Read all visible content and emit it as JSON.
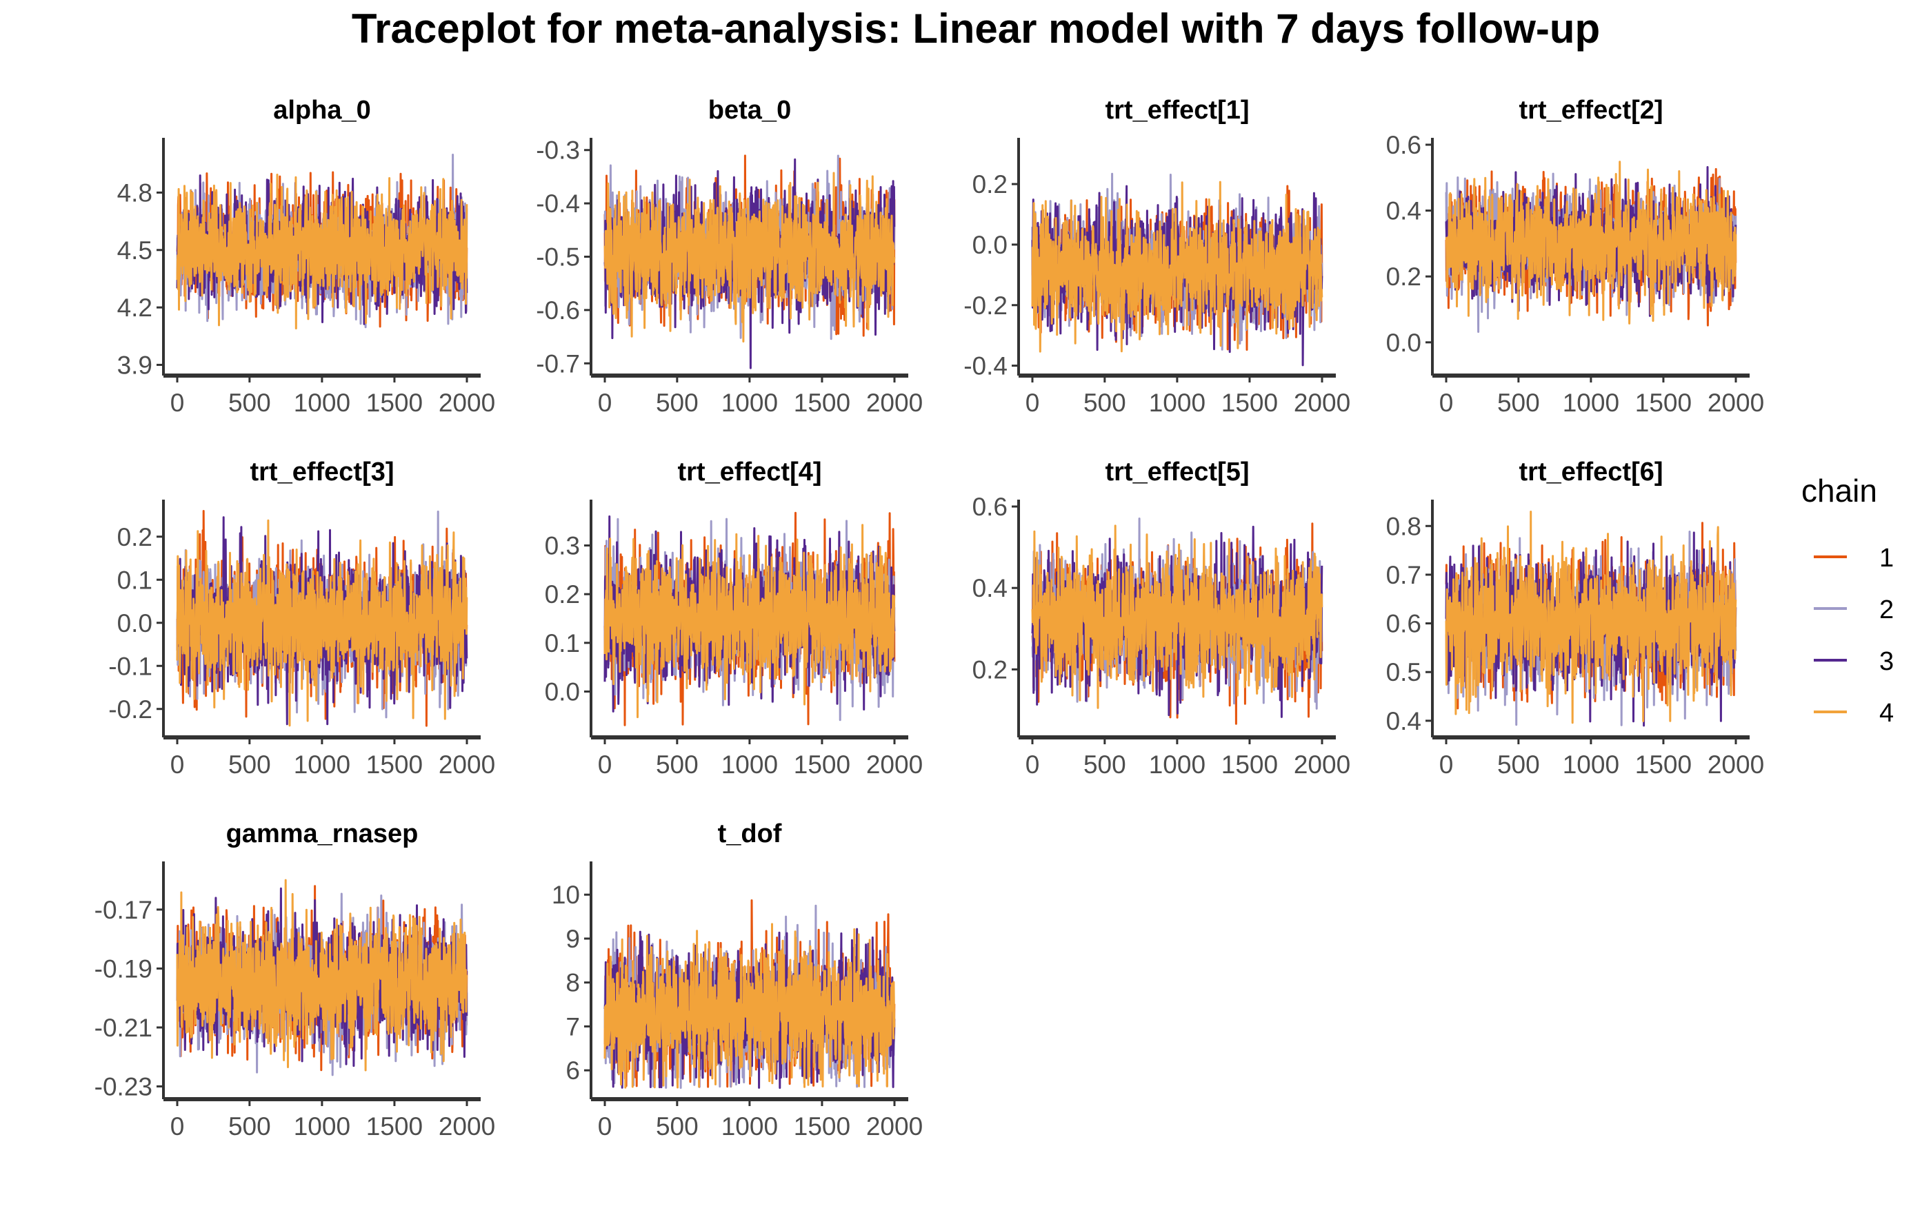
{
  "title": "Traceplot for meta-analysis: Linear model with 7 days follow-up",
  "colors": {
    "1": "#E6550D",
    "2": "#9E9AC8",
    "3": "#54278F",
    "4": "#F2A33A",
    "axis": "#333333",
    "tick_text": "#4d4d4d"
  },
  "legend": {
    "title": "chain",
    "entries": [
      "1",
      "2",
      "3",
      "4"
    ],
    "placement": "right"
  },
  "chart_data": {
    "type": "line",
    "x_range": [
      1,
      2000
    ],
    "x_ticks": [
      0,
      500,
      1000,
      1500,
      2000
    ],
    "x_tick_labels": [
      "0",
      "500",
      "1000",
      "1500",
      "2000"
    ],
    "series_names": [
      "1",
      "2",
      "3",
      "4"
    ],
    "panels": [
      {
        "name": "alpha_0",
        "ylim": [
          3.88,
          5.05
        ],
        "y_ticks": [
          3.9,
          4.2,
          4.5,
          4.8
        ],
        "y_tick_labels": [
          "3.9",
          "4.2",
          "4.5",
          "4.8"
        ],
        "center": 4.5,
        "sd": 0.14,
        "min": 3.92,
        "max": 5.0
      },
      {
        "name": "beta_0",
        "ylim": [
          -0.71,
          -0.29
        ],
        "y_ticks": [
          -0.7,
          -0.6,
          -0.5,
          -0.4,
          -0.3
        ],
        "y_tick_labels": [
          "-0.7",
          "-0.6",
          "-0.5",
          "-0.4",
          "-0.3"
        ],
        "center": -0.49,
        "sd": 0.055,
        "min": -0.71,
        "max": -0.31
      },
      {
        "name": "trt_effect[1]",
        "ylim": [
          -0.41,
          0.33
        ],
        "y_ticks": [
          -0.4,
          -0.2,
          0.0,
          0.2
        ],
        "y_tick_labels": [
          "-0.4",
          "-0.2",
          "0.0",
          "0.2"
        ],
        "center": -0.08,
        "sd": 0.09,
        "min": -0.4,
        "max": 0.28
      },
      {
        "name": "trt_effect[2]",
        "ylim": [
          -0.08,
          0.6
        ],
        "y_ticks": [
          0.0,
          0.2,
          0.4,
          0.6
        ],
        "y_tick_labels": [
          "0.0",
          "0.2",
          "0.4",
          "0.6"
        ],
        "center": 0.3,
        "sd": 0.08,
        "min": -0.07,
        "max": 0.58
      },
      {
        "name": "trt_effect[3]",
        "ylim": [
          -0.25,
          0.27
        ],
        "y_ticks": [
          -0.2,
          -0.1,
          0.0,
          0.1,
          0.2
        ],
        "y_tick_labels": [
          "-0.2",
          "-0.1",
          "0.0",
          "0.1",
          "0.2"
        ],
        "center": 0.0,
        "sd": 0.07,
        "min": -0.24,
        "max": 0.26
      },
      {
        "name": "trt_effect[4]",
        "ylim": [
          -0.08,
          0.38
        ],
        "y_ticks": [
          0.0,
          0.1,
          0.2,
          0.3
        ],
        "y_tick_labels": [
          "0.0",
          "0.1",
          "0.2",
          "0.3"
        ],
        "center": 0.15,
        "sd": 0.065,
        "min": -0.07,
        "max": 0.37
      },
      {
        "name": "trt_effect[5]",
        "ylim": [
          0.05,
          0.6
        ],
        "y_ticks": [
          0.2,
          0.4,
          0.6
        ],
        "y_tick_labels": [
          "0.2",
          "0.4",
          "0.6"
        ],
        "center": 0.32,
        "sd": 0.075,
        "min": 0.06,
        "max": 0.58
      },
      {
        "name": "trt_effect[6]",
        "ylim": [
          0.38,
          0.84
        ],
        "y_ticks": [
          0.4,
          0.5,
          0.6,
          0.7,
          0.8
        ],
        "y_tick_labels": [
          "0.4",
          "0.5",
          "0.6",
          "0.7",
          "0.8"
        ],
        "center": 0.6,
        "sd": 0.065,
        "min": 0.39,
        "max": 0.83
      },
      {
        "name": "gamma_rnasep",
        "ylim": [
          -0.232,
          -0.156
        ],
        "y_ticks": [
          -0.23,
          -0.21,
          -0.19,
          -0.17
        ],
        "y_tick_labels": [
          "-0.23",
          "-0.21",
          "-0.19",
          "-0.17"
        ],
        "center": -0.195,
        "sd": 0.01,
        "min": -0.23,
        "max": -0.16
      },
      {
        "name": "t_dof",
        "ylim": [
          5.5,
          10.6
        ],
        "y_ticks": [
          6,
          7,
          8,
          9,
          10
        ],
        "y_tick_labels": [
          "6",
          "7",
          "8",
          "9",
          "10"
        ],
        "center": 7.3,
        "sd": 0.7,
        "min": 5.6,
        "max": 10.4
      }
    ]
  }
}
